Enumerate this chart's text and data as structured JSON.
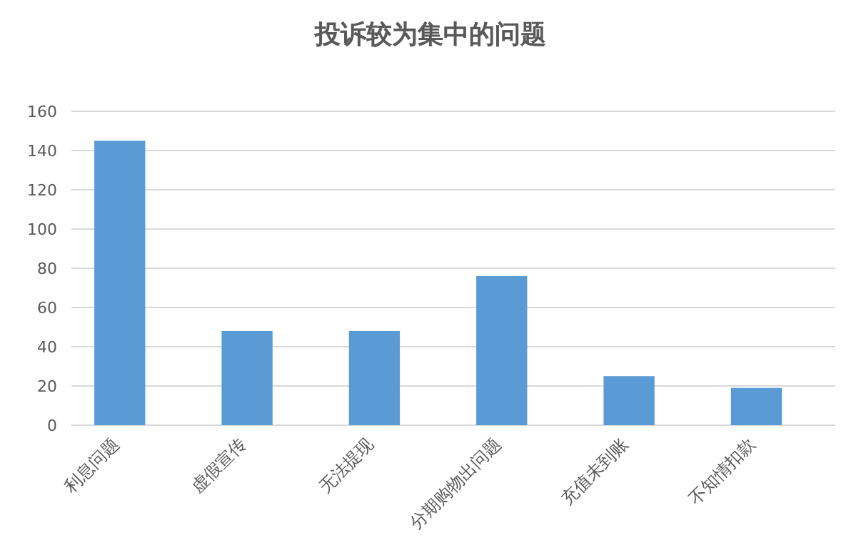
{
  "chart_data": {
    "type": "bar",
    "title": "投诉较为集中的问题",
    "categories": [
      "利息问题",
      "虚假宣传",
      "无法提现",
      "分期购物出问题",
      "充值未到账",
      "不知情扣款"
    ],
    "values": [
      145,
      48,
      48,
      76,
      25,
      19
    ],
    "color": "#5b9bd5",
    "ylim": [
      0,
      160
    ],
    "yticks": [
      0,
      20,
      40,
      60,
      80,
      100,
      120,
      140,
      160
    ],
    "grid": "y"
  }
}
